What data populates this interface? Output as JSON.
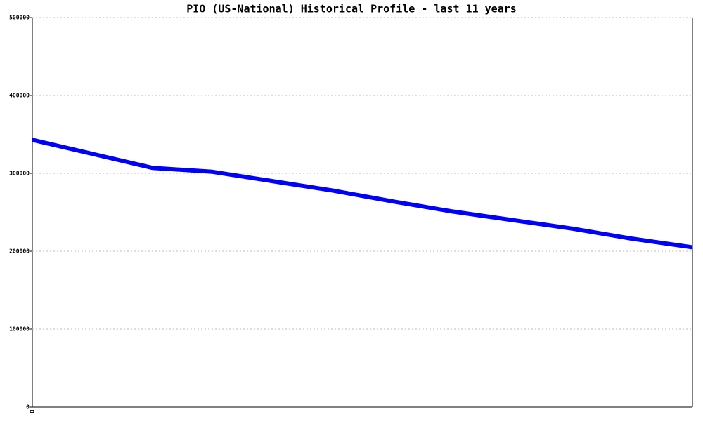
{
  "chart_data": {
    "type": "line",
    "title": "PIO (US-National) Historical Profile - last 11 years",
    "categories": [
      "0",
      null,
      null,
      null,
      null,
      null,
      null,
      null,
      null,
      null,
      null,
      null
    ],
    "series": [
      {
        "name": "PIO",
        "color": "#0000ff",
        "values": [
          343000,
          325000,
          307000,
          302000,
          290000,
          278000,
          264000,
          251000,
          240000,
          229000,
          216000,
          205000
        ]
      }
    ],
    "ylim": [
      0,
      500000
    ],
    "yticks": [
      0,
      100000,
      200000,
      300000,
      400000,
      500000
    ],
    "grid": true
  }
}
